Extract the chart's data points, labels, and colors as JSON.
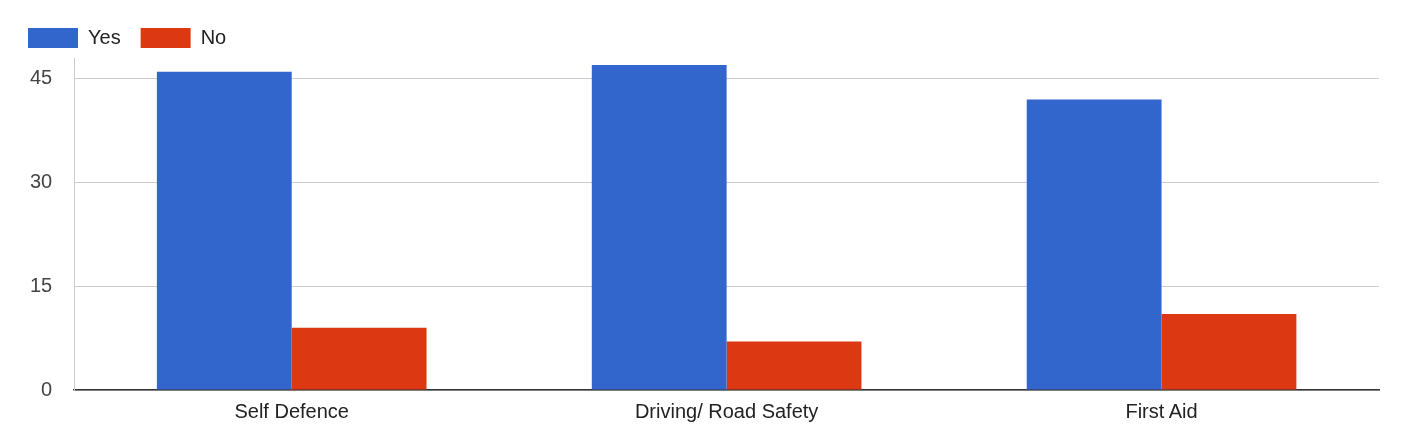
{
  "chart_data": {
    "type": "bar",
    "categories": [
      "Self Defence",
      "Driving/ Road Safety",
      "First Aid"
    ],
    "series": [
      {
        "name": "Yes",
        "color": "#3366cc",
        "values": [
          46,
          47,
          42
        ]
      },
      {
        "name": "No",
        "color": "#dc3912",
        "values": [
          9,
          7,
          11
        ]
      }
    ],
    "ylim": [
      0,
      48
    ],
    "yticks": [
      0,
      15,
      30,
      45
    ],
    "grid": "y",
    "legend": "top left"
  }
}
